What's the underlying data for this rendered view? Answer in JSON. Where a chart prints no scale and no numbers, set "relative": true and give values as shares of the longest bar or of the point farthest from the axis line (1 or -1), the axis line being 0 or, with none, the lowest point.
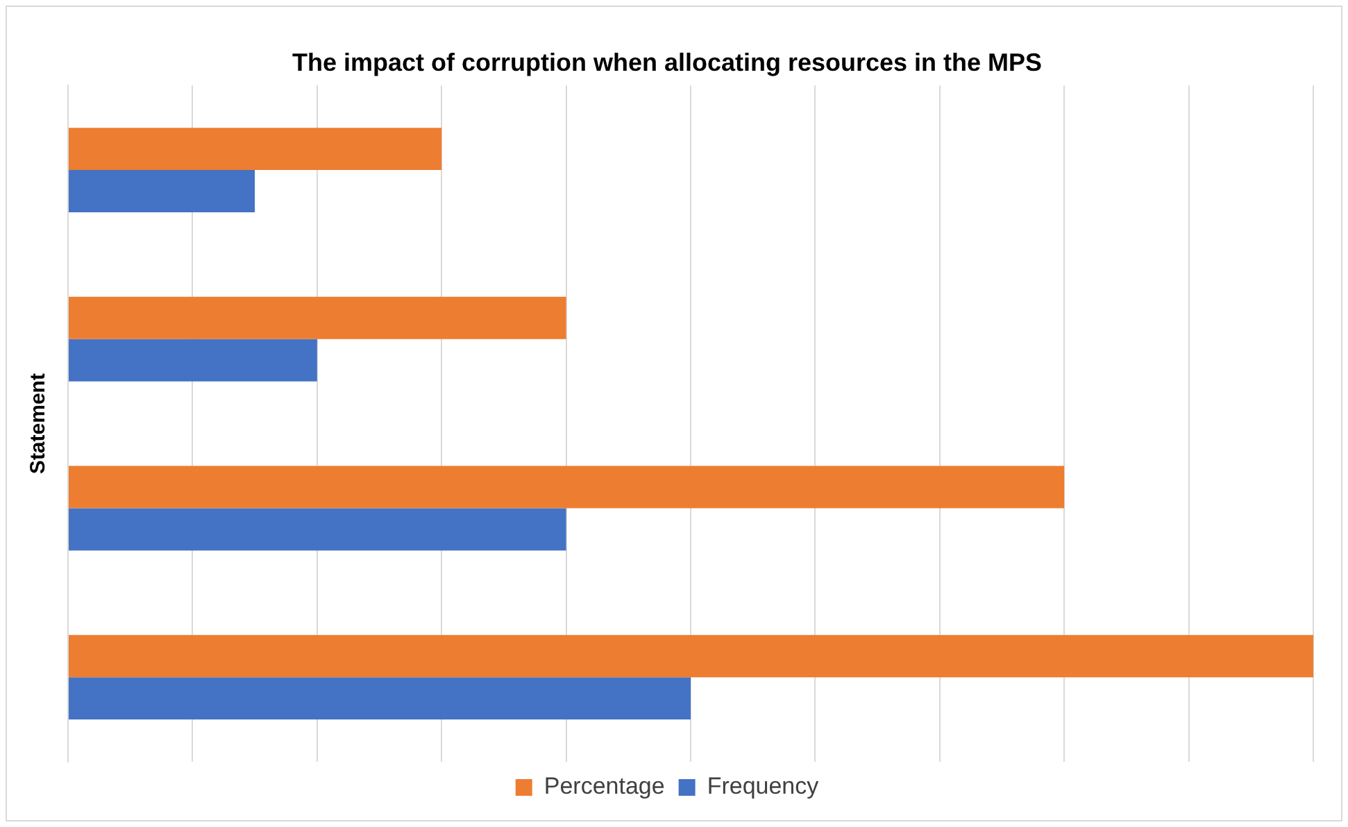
{
  "chart_data": {
    "type": "bar",
    "orientation": "horizontal",
    "relative": true,
    "title": "The impact of corruption when allocating resources in the MPS",
    "ylabel": "Statement",
    "categories": [
      null,
      null,
      null,
      null
    ],
    "series": [
      {
        "name": "Percentage",
        "color": "#ed7d31",
        "values": [
          0.3,
          0.4,
          0.8,
          1
        ]
      },
      {
        "name": "Frequency",
        "color": "#4472c4",
        "values": [
          0.15,
          0.2,
          0.4,
          0.5
        ]
      }
    ],
    "grid": "x",
    "legend": "bottom"
  }
}
